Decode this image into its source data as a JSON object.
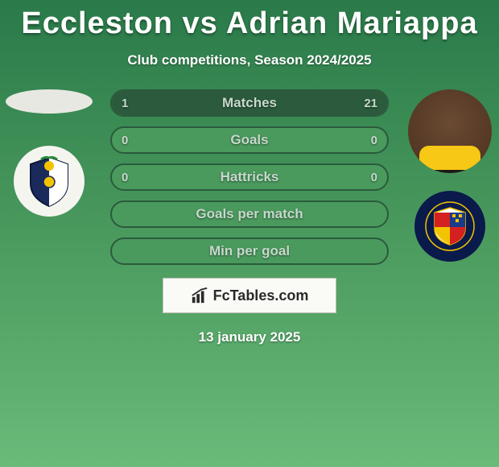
{
  "title": "Eccleston vs Adrian Mariappa",
  "subtitle": "Club competitions, Season 2024/2025",
  "date": "13 january 2025",
  "brand": "FcTables.com",
  "colors": {
    "bar_border": "#2b5a3c",
    "bar_bg": "#4a9a5e",
    "bar_fill": "#2b5a3c",
    "text": "#c7d8cc",
    "panel_bg": "#fafaf6"
  },
  "stats": [
    {
      "label": "Matches",
      "left_val": "1",
      "right_val": "21",
      "left_pct": 4.5,
      "right_pct": 95.5
    },
    {
      "label": "Goals",
      "left_val": "0",
      "right_val": "0",
      "left_pct": 0,
      "right_pct": 0
    },
    {
      "label": "Hattricks",
      "left_val": "0",
      "right_val": "0",
      "left_pct": 0,
      "right_pct": 0
    },
    {
      "label": "Goals per match",
      "left_val": "",
      "right_val": "",
      "left_pct": 0,
      "right_pct": 0
    },
    {
      "label": "Min per goal",
      "left_val": "",
      "right_val": "",
      "left_pct": 0,
      "right_pct": 0
    }
  ],
  "left_player": {
    "name": "Eccleston",
    "has_photo": false
  },
  "right_player": {
    "name": "Adrian Mariappa",
    "has_photo": true
  },
  "left_club_colors": {
    "outer": "#f5f5f0",
    "shield1": "#1a2a5a",
    "shield2": "#ffffff",
    "accent": "#f2c400"
  },
  "right_club_colors": {
    "outer": "#0a1a4a",
    "q1": "#d42020",
    "q2": "#1a3a8a",
    "q3": "#f2c400",
    "q4": "#d42020",
    "ring": "#f2c400"
  }
}
